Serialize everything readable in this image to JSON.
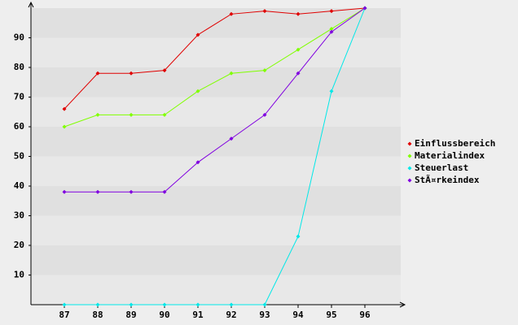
{
  "chart_data": {
    "type": "line",
    "categories": [
      "87",
      "88",
      "89",
      "90",
      "91",
      "92",
      "93",
      "94",
      "95",
      "96"
    ],
    "series": [
      {
        "name": "Einflussbereich",
        "color": "#e00000",
        "values": [
          66,
          78,
          78,
          79,
          91,
          98,
          99,
          98,
          99,
          100
        ]
      },
      {
        "name": "Materialindex",
        "color": "#80ff00",
        "values": [
          60,
          64,
          64,
          64,
          72,
          78,
          79,
          86,
          93,
          100
        ]
      },
      {
        "name": "Steuerlast",
        "color": "#00e8e8",
        "values": [
          0,
          0,
          0,
          0,
          0,
          0,
          0,
          23,
          72,
          100
        ]
      },
      {
        "name": "StÃ¤rkeindex",
        "color": "#8000e0",
        "values": [
          38,
          38,
          38,
          38,
          48,
          56,
          64,
          78,
          92,
          100
        ]
      }
    ],
    "ylim": [
      0,
      100
    ],
    "yticks": [
      10,
      20,
      30,
      40,
      50,
      60,
      70,
      80,
      90
    ],
    "legend": "right"
  }
}
